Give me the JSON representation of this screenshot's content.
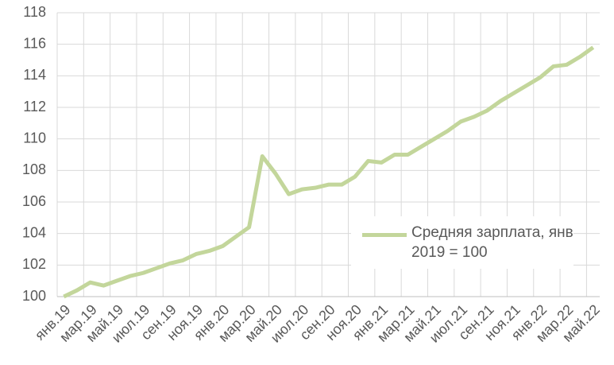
{
  "chart_data": {
    "type": "line",
    "categories": [
      "янв.19",
      null,
      "мар.19",
      null,
      "май.19",
      null,
      "июл.19",
      null,
      "сен.19",
      null,
      "ноя.19",
      null,
      "янв.20",
      null,
      "мар.20",
      null,
      "май.20",
      null,
      "июл.20",
      null,
      "сен.20",
      null,
      "ноя.20",
      null,
      "янв.21",
      null,
      "мар.21",
      null,
      "май.21",
      null,
      "июл.21",
      null,
      "сен.21",
      null,
      "ноя.21",
      null,
      "янв.22",
      null,
      "мар.22",
      null,
      "май.22"
    ],
    "series": [
      {
        "name": "Средняя зарплата, янв 2019 = 100",
        "color": "#c3d69b",
        "values": [
          100.0,
          100.4,
          100.9,
          100.7,
          101.0,
          101.3,
          101.5,
          101.8,
          102.1,
          102.3,
          102.7,
          102.9,
          103.2,
          103.8,
          104.4,
          108.9,
          107.8,
          106.5,
          106.8,
          106.9,
          107.1,
          107.1,
          107.6,
          108.6,
          108.5,
          109.0,
          109.0,
          109.5,
          110.0,
          110.5,
          111.1,
          111.4,
          111.8,
          112.4,
          112.9,
          113.4,
          113.9,
          114.6,
          114.7,
          115.2,
          115.8
        ]
      }
    ],
    "ylim": [
      100,
      118
    ],
    "yticks": [
      100,
      102,
      104,
      106,
      108,
      110,
      112,
      114,
      116,
      118
    ],
    "grid": true
  }
}
